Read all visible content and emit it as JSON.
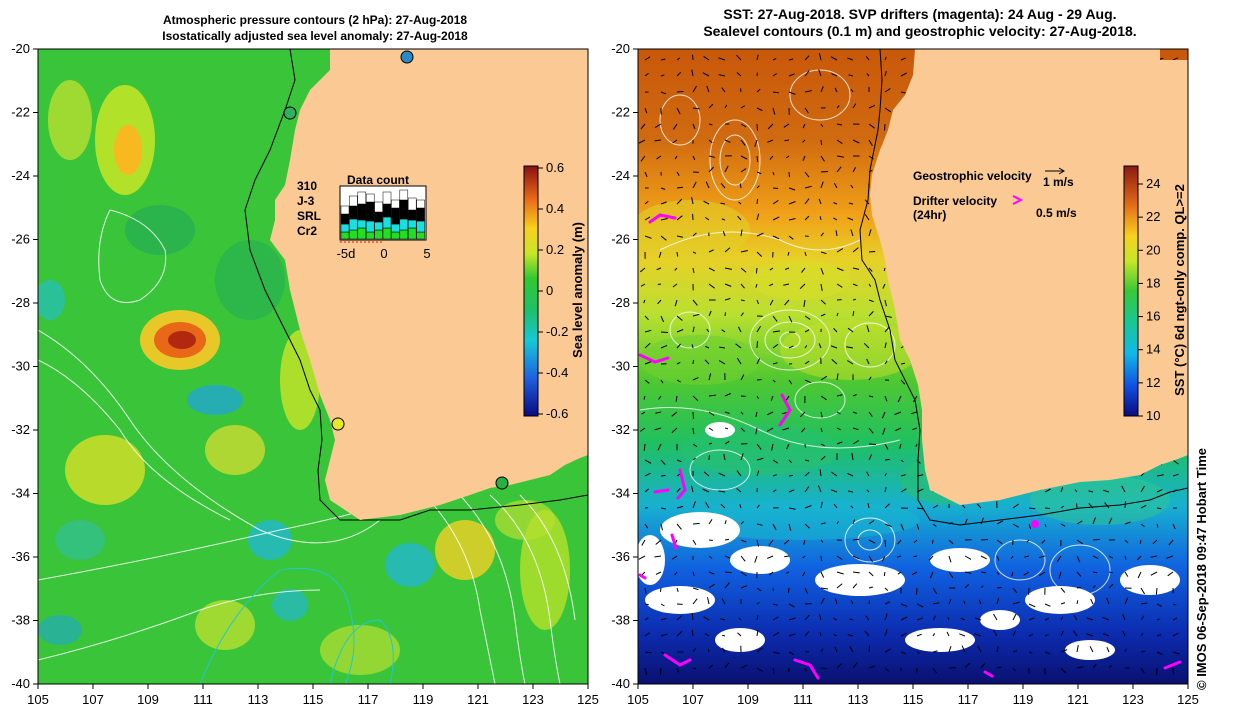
{
  "left_panel": {
    "title_line1": "Atmospheric pressure contours (2 hPa): 27-Aug-2018",
    "title_line2": "Isostatically adjusted sea level anomaly: 27-Aug-2018",
    "colorbar_label": "Sea level anomaly (m)",
    "colorbar_ticks": [
      "0.6",
      "0.4",
      "0.2",
      "0",
      "-0.2",
      "-0.4",
      "-0.6"
    ],
    "colors": {
      "ocean_base": "#39c43a",
      "land": "#fac994"
    },
    "data_count": {
      "title": "Data count",
      "satellites": [
        {
          "name": "310",
          "color": "#000000"
        },
        {
          "name": "J-3",
          "color": "#000000"
        },
        {
          "name": "SRL",
          "color": "#19e0e0"
        },
        {
          "name": "Cr2",
          "color": "#22dd22"
        }
      ],
      "axis_ticks": [
        "-5d",
        "0",
        "5"
      ]
    }
  },
  "right_panel": {
    "title_line1": "SST: 27-Aug-2018. SVP drifters (magenta): 24 Aug - 29 Aug.",
    "title_line2": "Sealevel contours (0.1 m) and geostrophic velocity: 27-Aug-2018.",
    "colorbar_label": "SST (°C) 6d ngt-only comp. QL>=2",
    "colorbar_ticks": [
      "24",
      "22",
      "20",
      "18",
      "16",
      "14",
      "12",
      "10"
    ],
    "legend": {
      "geostrophic_label": "Geostrophic velocity",
      "geostrophic_scale": "1 m/s",
      "drifter_label_line1": "Drifter velocity",
      "drifter_label_line2": "(24hr)",
      "drifter_scale": "0.5 m/s"
    },
    "colors": {
      "land": "#fac994",
      "drifter": "#ff00ff"
    }
  },
  "axes": {
    "lat_ticks": [
      "-20",
      "-22",
      "-24",
      "-26",
      "-28",
      "-30",
      "-32",
      "-34",
      "-36",
      "-38",
      "-40"
    ],
    "lon_ticks": [
      "105",
      "107",
      "109",
      "111",
      "113",
      "115",
      "117",
      "119",
      "121",
      "123",
      "125"
    ]
  },
  "credit": "© IMOS 06-Sep-2018 09:47 Hobart Time"
}
